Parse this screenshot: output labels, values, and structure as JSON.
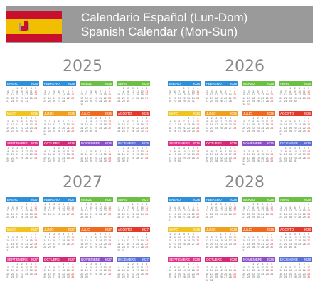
{
  "header": {
    "title_es": "Calendario Español (Lun-Dom)",
    "title_en": "Spanish Calendar (Mon-Sun)"
  },
  "flag": {
    "colors": {
      "red": "#c8102e",
      "yellow": "#f1bf00"
    },
    "emblem": "coat-of-arms-icon"
  },
  "month_names": [
    "ENERO",
    "FEBRERO",
    "MARZO",
    "ABRIL",
    "MAYO",
    "JUNIO",
    "JULIO",
    "AGOSTO",
    "SEPTIEMBRE",
    "OCTUBRE",
    "NOVIEMBRE",
    "DICIEMBRE"
  ],
  "month_colors": [
    "#2f8fd8",
    "#2f8fd8",
    "#6cbf45",
    "#6cbf45",
    "#f0c31f",
    "#f0a01f",
    "#ef6a1f",
    "#e23a2a",
    "#e0308a",
    "#d42a7a",
    "#8a4fc9",
    "#5a6fd8"
  ],
  "calendars": [
    {
      "year": 2025,
      "first_weekdays": [
        2,
        5,
        5,
        1,
        3,
        6,
        1,
        4,
        0,
        2,
        5,
        0
      ]
    },
    {
      "year": 2026,
      "first_weekdays": [
        3,
        6,
        6,
        2,
        4,
        0,
        2,
        5,
        1,
        3,
        6,
        1
      ]
    },
    {
      "year": 2027,
      "first_weekdays": [
        4,
        0,
        0,
        3,
        5,
        1,
        3,
        6,
        2,
        4,
        0,
        2
      ]
    },
    {
      "year": 2028,
      "first_weekdays": [
        5,
        1,
        2,
        5,
        0,
        3,
        5,
        1,
        4,
        6,
        2,
        4
      ]
    }
  ],
  "month_days": {
    "2025": [
      31,
      28,
      31,
      30,
      31,
      30,
      31,
      31,
      30,
      31,
      30,
      31
    ],
    "2026": [
      31,
      28,
      31,
      30,
      31,
      30,
      31,
      31,
      30,
      31,
      30,
      31
    ],
    "2027": [
      31,
      28,
      31,
      30,
      31,
      30,
      31,
      31,
      30,
      31,
      30,
      31
    ],
    "2028": [
      31,
      29,
      31,
      30,
      31,
      30,
      31,
      31,
      30,
      31,
      30,
      31
    ]
  }
}
